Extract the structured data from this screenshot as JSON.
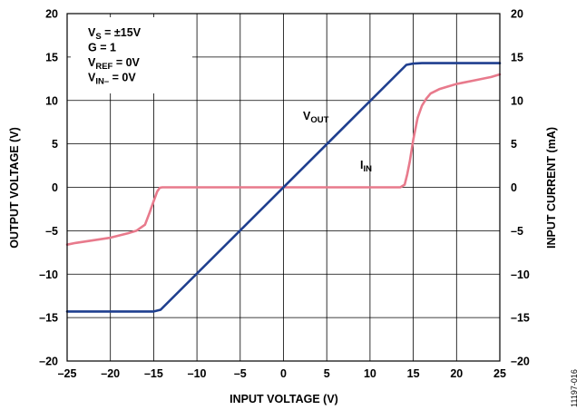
{
  "chart_data": {
    "type": "line",
    "x_axis": {
      "label": "INPUT VOLTAGE (V)",
      "min": -25,
      "max": 25,
      "ticks": [
        -25,
        -20,
        -15,
        -10,
        -5,
        0,
        5,
        10,
        15,
        20,
        25
      ],
      "tick_labels": [
        "–25",
        "–20",
        "–15",
        "–10",
        "–5",
        "0",
        "5",
        "10",
        "15",
        "20",
        "25"
      ]
    },
    "y_left_axis": {
      "label": "OUTPUT VOLTAGE (V)",
      "min": -20,
      "max": 20,
      "ticks": [
        -20,
        -15,
        -10,
        -5,
        0,
        5,
        10,
        15,
        20
      ],
      "tick_labels": [
        "–20",
        "–15",
        "–10",
        "–5",
        "0",
        "5",
        "10",
        "15",
        "20"
      ]
    },
    "y_right_axis": {
      "label": "INPUT CURRENT (mA)",
      "min": -20,
      "max": 20,
      "ticks": [
        -20,
        -15,
        -10,
        -5,
        0,
        5,
        10,
        15,
        20
      ],
      "tick_labels": [
        "–20",
        "–15",
        "–10",
        "–5",
        "0",
        "5",
        "10",
        "15",
        "20"
      ]
    },
    "grid": true,
    "series": [
      {
        "name_main": "V",
        "name_sub": "OUT",
        "axis": "left",
        "color": "#1f3f8f",
        "x": [
          -25,
          -15,
          -14.2,
          14.2,
          15,
          16,
          25
        ],
        "y": [
          -14.3,
          -14.3,
          -14.1,
          14.1,
          14.25,
          14.3,
          14.3
        ]
      },
      {
        "name_main": "I",
        "name_sub": "IN",
        "axis": "right",
        "color": "#e87a8c",
        "x": [
          -25,
          -24,
          -22,
          -20,
          -18,
          -17,
          -16,
          -15.5,
          -15,
          -14.6,
          -14.3,
          -14,
          0,
          13.5,
          14,
          14.3,
          14.6,
          15,
          15.5,
          16,
          16.5,
          17,
          18,
          19,
          20,
          22,
          24,
          25
        ],
        "y": [
          -6.6,
          -6.4,
          -6.1,
          -5.8,
          -5.3,
          -5.0,
          -4.3,
          -3.0,
          -1.6,
          -0.5,
          -0.05,
          0,
          0,
          0,
          0.3,
          1.5,
          3.0,
          5.5,
          8.0,
          9.4,
          10.2,
          10.8,
          11.3,
          11.6,
          11.9,
          12.3,
          12.7,
          13.0
        ]
      }
    ],
    "annotations": {
      "conditions": [
        {
          "main": "V",
          "sub": "S",
          "rest": " = ±15V"
        },
        {
          "main": "G = 1",
          "sub": "",
          "rest": ""
        },
        {
          "main": "V",
          "sub": "REF",
          "rest": " = 0V"
        },
        {
          "main": "V",
          "sub": "IN–",
          "rest": " = 0V"
        }
      ]
    },
    "figure_id": "11197-016"
  }
}
